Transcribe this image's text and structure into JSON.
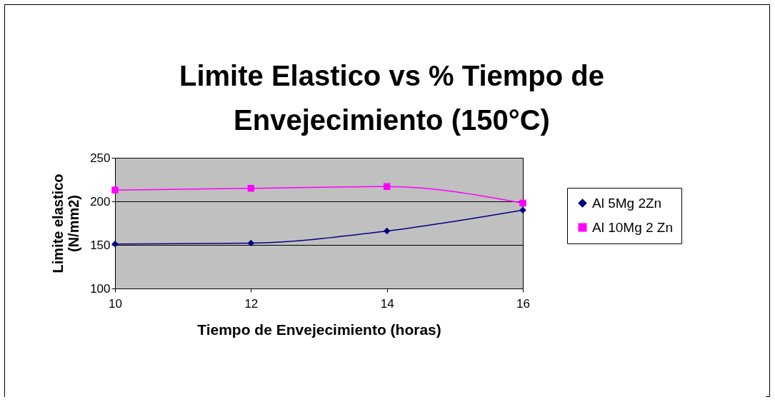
{
  "chart_data": {
    "type": "line",
    "title": "Limite Elastico vs % Tiempo de Envejecimiento  (150°C)",
    "xlabel": "Tiempo de Envejecimiento (horas)",
    "ylabel": "Limite elastico (N/mm2)",
    "x": [
      10,
      12,
      14,
      16
    ],
    "series": [
      {
        "name": "Al 5Mg 2Zn",
        "color": "#000080",
        "marker": "diamond",
        "values": [
          151,
          152,
          166,
          190
        ]
      },
      {
        "name": "Al 10Mg 2 Zn",
        "color": "#ff00ff",
        "marker": "square",
        "values": [
          213,
          215,
          217,
          198
        ]
      }
    ],
    "xlim": [
      10,
      16
    ],
    "xticks": [
      10,
      12,
      14,
      16
    ],
    "ylim": [
      100,
      250
    ],
    "yticks": [
      100,
      150,
      200,
      250
    ],
    "grid": "y",
    "legend": "right"
  }
}
